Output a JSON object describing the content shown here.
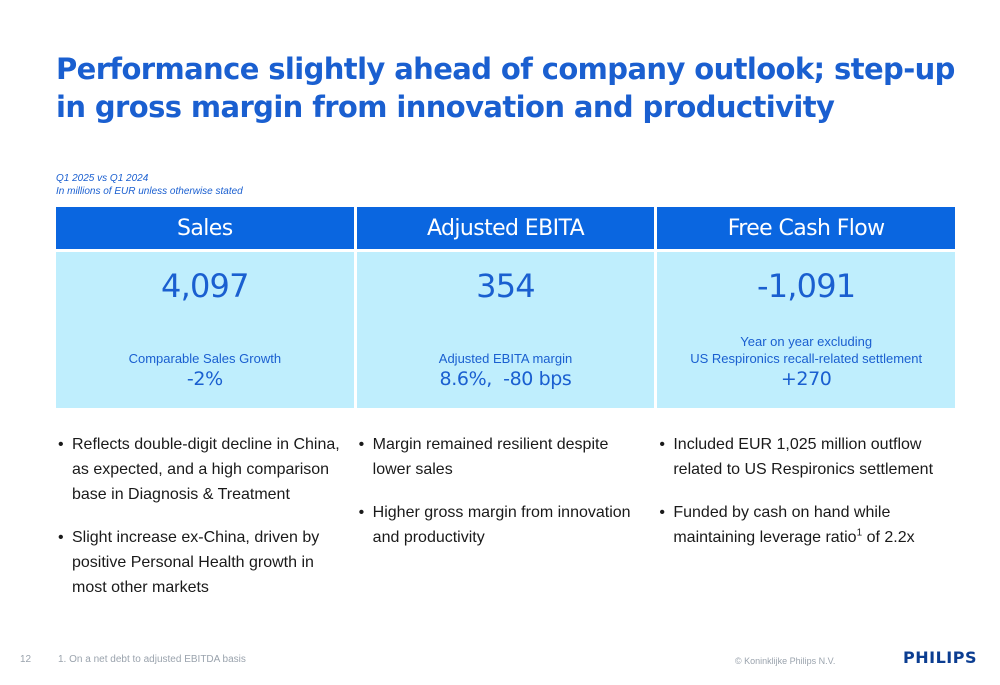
{
  "slide": {
    "title": "Performance slightly ahead of company outlook; step-up in gross margin from innovation and productivity",
    "subtitle_line1": "Q1 2025 vs Q1 2024",
    "subtitle_line2": "In millions of EUR unless otherwise stated"
  },
  "columns": [
    {
      "header": "Sales",
      "value": "4,097",
      "metric_label": "Comparable Sales Growth",
      "metric_value": "-2%",
      "bullets": [
        "Reflects double-digit decline in China, as expected, and a high comparison base in Diagnosis & Treatment",
        "Slight increase ex-China, driven by positive Personal Health growth in most other markets"
      ]
    },
    {
      "header": "Adjusted EBITA",
      "value": "354",
      "metric_label": "Adjusted EBITA margin",
      "metric_value": "8.6%,  -80 bps",
      "bullets": [
        "Margin remained resilient despite lower sales",
        "Higher gross margin from innovation and productivity"
      ]
    },
    {
      "header": "Free Cash Flow",
      "value": "-1,091",
      "metric_label_line1": "Year on year excluding",
      "metric_label_line2": "US Respironics recall-related settlement",
      "metric_value": "+270",
      "bullets": [
        "Included EUR 1,025 million outflow related to US Respironics settlement"
      ],
      "bullet2_before": "Funded by cash on hand while maintaining leverage ratio",
      "bullet2_sup": "1",
      "bullet2_after": " of 2.2x"
    }
  ],
  "footer": {
    "page_number": "12",
    "footnote": "1. On a net debt to adjusted EBITDA basis",
    "copyright": "© Koninklijke Philips N.V.",
    "logo": "PHILIPS"
  }
}
